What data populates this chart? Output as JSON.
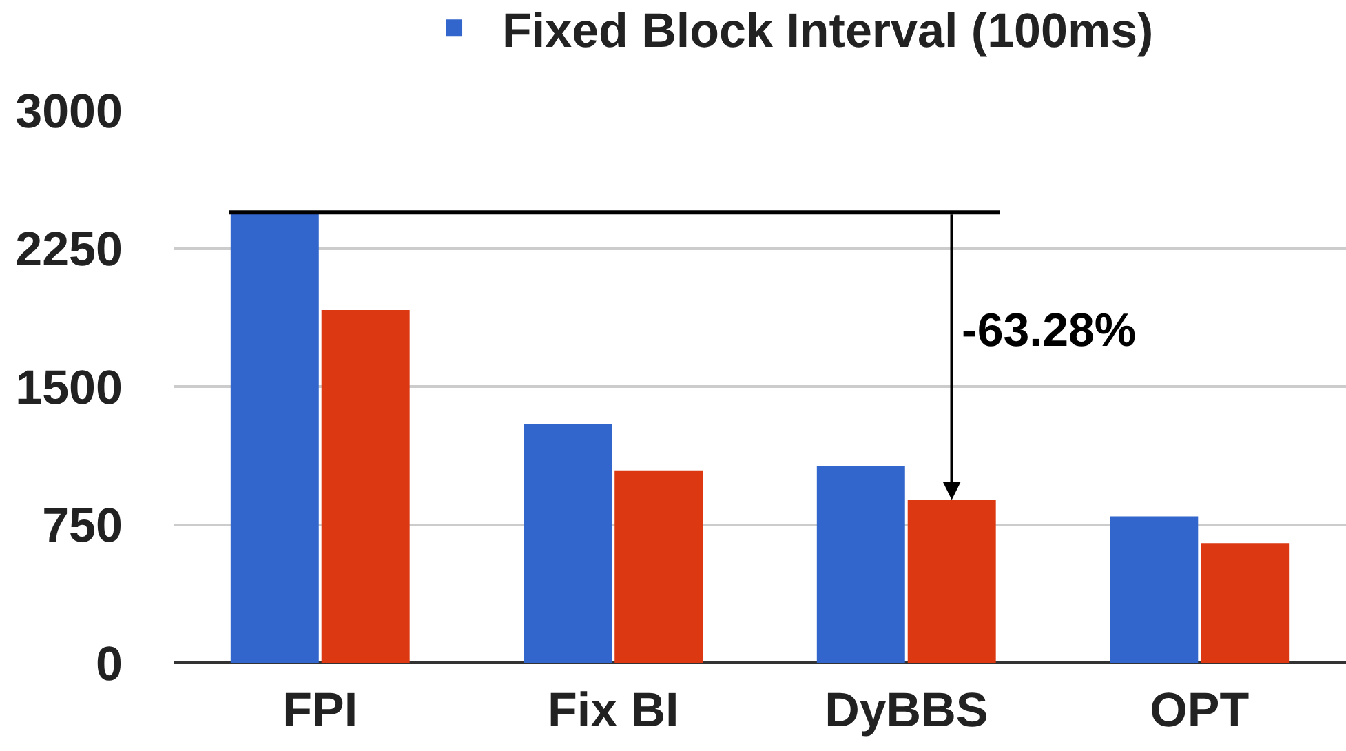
{
  "chart_data": {
    "type": "bar",
    "categories": [
      "FPI",
      "Fix BI",
      "DyBBS",
      "OPT"
    ],
    "series": [
      {
        "name": "Fixed Block Interval (100ms)",
        "color": "#3366cc",
        "values": [
          2445,
          1295,
          1070,
          795
        ]
      },
      {
        "color": "#dc3912",
        "values": [
          1915,
          1045,
          885,
          650
        ]
      }
    ],
    "ylim": [
      0,
      3000
    ],
    "yticks": [
      0,
      750,
      1500,
      2250,
      3000
    ],
    "grid": "y",
    "legend": "top",
    "ref_lines": [
      {
        "axis": "y",
        "value": 2445,
        "color": "#000000"
      }
    ],
    "annotations": [
      "-63.28%"
    ]
  }
}
